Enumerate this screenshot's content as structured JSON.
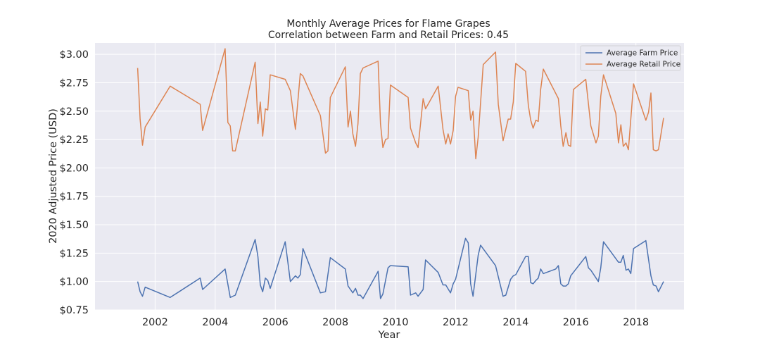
{
  "chart_data": {
    "type": "line",
    "title": "Monthly Average Prices for Flame Grapes",
    "subtitle": "Correlation between Farm and Retail Prices: 0.45",
    "xlabel": "Year",
    "ylabel": "2020 Adjusted Price (USD)",
    "xlim": [
      2000.0,
      2019.6
    ],
    "ylim": [
      0.75,
      3.1
    ],
    "x_ticks": [
      2002,
      2004,
      2006,
      2008,
      2010,
      2012,
      2014,
      2016,
      2018
    ],
    "x_tick_labels": [
      "2002",
      "2004",
      "2006",
      "2008",
      "2010",
      "2012",
      "2014",
      "2016",
      "2018"
    ],
    "y_ticks": [
      0.75,
      1.0,
      1.25,
      1.5,
      1.75,
      2.0,
      2.25,
      2.5,
      2.75,
      3.0
    ],
    "y_tick_labels": [
      "$0.75",
      "$1.00",
      "$1.25",
      "$1.50",
      "$1.75",
      "$2.00",
      "$2.25",
      "$2.50",
      "$2.75",
      "$3.00"
    ],
    "grid": true,
    "legend_position": "top-right",
    "series": [
      {
        "name": "Average Farm Price",
        "color": "#4c72b0",
        "points": [
          [
            2001.42,
            1.0
          ],
          [
            2001.5,
            0.91
          ],
          [
            2001.58,
            0.87
          ],
          [
            2001.67,
            0.95
          ],
          [
            2002.5,
            0.86
          ],
          [
            2003.5,
            1.03
          ],
          [
            2003.58,
            0.93
          ],
          [
            2004.33,
            1.11
          ],
          [
            2004.5,
            0.86
          ],
          [
            2004.67,
            0.88
          ],
          [
            2005.33,
            1.37
          ],
          [
            2005.42,
            1.22
          ],
          [
            2005.5,
            0.97
          ],
          [
            2005.58,
            0.91
          ],
          [
            2005.67,
            1.03
          ],
          [
            2005.75,
            1.01
          ],
          [
            2005.83,
            0.94
          ],
          [
            2006.33,
            1.35
          ],
          [
            2006.5,
            1.0
          ],
          [
            2006.67,
            1.05
          ],
          [
            2006.75,
            1.03
          ],
          [
            2006.83,
            1.06
          ],
          [
            2006.92,
            1.29
          ],
          [
            2007.5,
            0.9
          ],
          [
            2007.67,
            0.91
          ],
          [
            2007.83,
            1.21
          ],
          [
            2008.33,
            1.11
          ],
          [
            2008.42,
            0.96
          ],
          [
            2008.58,
            0.9
          ],
          [
            2008.67,
            0.94
          ],
          [
            2008.75,
            0.88
          ],
          [
            2008.83,
            0.88
          ],
          [
            2008.92,
            0.85
          ],
          [
            2009.42,
            1.09
          ],
          [
            2009.5,
            0.85
          ],
          [
            2009.58,
            0.89
          ],
          [
            2009.75,
            1.12
          ],
          [
            2009.83,
            1.14
          ],
          [
            2010.42,
            1.13
          ],
          [
            2010.5,
            0.88
          ],
          [
            2010.67,
            0.9
          ],
          [
            2010.75,
            0.87
          ],
          [
            2010.92,
            0.93
          ],
          [
            2011.0,
            1.19
          ],
          [
            2011.42,
            1.08
          ],
          [
            2011.58,
            0.97
          ],
          [
            2011.67,
            0.97
          ],
          [
            2011.83,
            0.9
          ],
          [
            2011.92,
            0.98
          ],
          [
            2012.0,
            1.02
          ],
          [
            2012.33,
            1.38
          ],
          [
            2012.42,
            1.34
          ],
          [
            2012.5,
            0.98
          ],
          [
            2012.58,
            0.87
          ],
          [
            2012.75,
            1.23
          ],
          [
            2012.83,
            1.32
          ],
          [
            2013.33,
            1.14
          ],
          [
            2013.58,
            0.87
          ],
          [
            2013.67,
            0.88
          ],
          [
            2013.83,
            1.02
          ],
          [
            2013.92,
            1.05
          ],
          [
            2014.0,
            1.06
          ],
          [
            2014.33,
            1.22
          ],
          [
            2014.42,
            1.22
          ],
          [
            2014.5,
            0.99
          ],
          [
            2014.58,
            0.98
          ],
          [
            2014.67,
            1.01
          ],
          [
            2014.75,
            1.03
          ],
          [
            2014.83,
            1.11
          ],
          [
            2014.92,
            1.07
          ],
          [
            2015.33,
            1.11
          ],
          [
            2015.42,
            1.14
          ],
          [
            2015.5,
            0.98
          ],
          [
            2015.58,
            0.96
          ],
          [
            2015.67,
            0.96
          ],
          [
            2015.75,
            0.98
          ],
          [
            2015.83,
            1.05
          ],
          [
            2016.33,
            1.22
          ],
          [
            2016.42,
            1.12
          ],
          [
            2016.5,
            1.1
          ],
          [
            2016.75,
            1.0
          ],
          [
            2016.83,
            1.12
          ],
          [
            2016.92,
            1.35
          ],
          [
            2017.42,
            1.17
          ],
          [
            2017.5,
            1.17
          ],
          [
            2017.58,
            1.23
          ],
          [
            2017.67,
            1.1
          ],
          [
            2017.75,
            1.11
          ],
          [
            2017.83,
            1.07
          ],
          [
            2017.92,
            1.29
          ],
          [
            2018.33,
            1.36
          ],
          [
            2018.5,
            1.05
          ],
          [
            2018.58,
            0.97
          ],
          [
            2018.67,
            0.96
          ],
          [
            2018.75,
            0.91
          ],
          [
            2018.92,
            1.0
          ]
        ]
      },
      {
        "name": "Average Retail Price",
        "color": "#dd8452",
        "points": [
          [
            2001.42,
            2.88
          ],
          [
            2001.5,
            2.43
          ],
          [
            2001.58,
            2.2
          ],
          [
            2001.67,
            2.36
          ],
          [
            2002.5,
            2.72
          ],
          [
            2003.5,
            2.56
          ],
          [
            2003.58,
            2.33
          ],
          [
            2004.33,
            3.05
          ],
          [
            2004.42,
            2.4
          ],
          [
            2004.5,
            2.37
          ],
          [
            2004.58,
            2.15
          ],
          [
            2004.67,
            2.15
          ],
          [
            2005.33,
            2.93
          ],
          [
            2005.42,
            2.39
          ],
          [
            2005.5,
            2.58
          ],
          [
            2005.58,
            2.28
          ],
          [
            2005.67,
            2.52
          ],
          [
            2005.75,
            2.51
          ],
          [
            2005.83,
            2.82
          ],
          [
            2006.33,
            2.78
          ],
          [
            2006.5,
            2.68
          ],
          [
            2006.67,
            2.34
          ],
          [
            2006.83,
            2.83
          ],
          [
            2006.92,
            2.81
          ],
          [
            2007.5,
            2.46
          ],
          [
            2007.67,
            2.13
          ],
          [
            2007.75,
            2.15
          ],
          [
            2007.83,
            2.62
          ],
          [
            2008.33,
            2.89
          ],
          [
            2008.42,
            2.36
          ],
          [
            2008.5,
            2.5
          ],
          [
            2008.58,
            2.3
          ],
          [
            2008.67,
            2.19
          ],
          [
            2008.75,
            2.39
          ],
          [
            2008.83,
            2.83
          ],
          [
            2008.92,
            2.88
          ],
          [
            2009.42,
            2.94
          ],
          [
            2009.5,
            2.39
          ],
          [
            2009.58,
            2.18
          ],
          [
            2009.67,
            2.25
          ],
          [
            2009.75,
            2.26
          ],
          [
            2009.83,
            2.73
          ],
          [
            2010.42,
            2.62
          ],
          [
            2010.5,
            2.35
          ],
          [
            2010.67,
            2.22
          ],
          [
            2010.75,
            2.18
          ],
          [
            2010.92,
            2.61
          ],
          [
            2011.0,
            2.52
          ],
          [
            2011.42,
            2.72
          ],
          [
            2011.58,
            2.34
          ],
          [
            2011.67,
            2.21
          ],
          [
            2011.75,
            2.3
          ],
          [
            2011.83,
            2.21
          ],
          [
            2011.92,
            2.33
          ],
          [
            2012.0,
            2.63
          ],
          [
            2012.08,
            2.71
          ],
          [
            2012.42,
            2.68
          ],
          [
            2012.5,
            2.42
          ],
          [
            2012.58,
            2.5
          ],
          [
            2012.67,
            2.08
          ],
          [
            2012.75,
            2.27
          ],
          [
            2012.92,
            2.91
          ],
          [
            2013.33,
            3.02
          ],
          [
            2013.42,
            2.56
          ],
          [
            2013.58,
            2.24
          ],
          [
            2013.75,
            2.43
          ],
          [
            2013.83,
            2.43
          ],
          [
            2013.92,
            2.58
          ],
          [
            2014.0,
            2.92
          ],
          [
            2014.33,
            2.85
          ],
          [
            2014.42,
            2.55
          ],
          [
            2014.5,
            2.42
          ],
          [
            2014.58,
            2.35
          ],
          [
            2014.67,
            2.42
          ],
          [
            2014.75,
            2.41
          ],
          [
            2014.83,
            2.69
          ],
          [
            2014.92,
            2.87
          ],
          [
            2015.42,
            2.61
          ],
          [
            2015.5,
            2.37
          ],
          [
            2015.58,
            2.19
          ],
          [
            2015.67,
            2.31
          ],
          [
            2015.75,
            2.2
          ],
          [
            2015.83,
            2.19
          ],
          [
            2015.92,
            2.69
          ],
          [
            2016.33,
            2.78
          ],
          [
            2016.5,
            2.37
          ],
          [
            2016.67,
            2.22
          ],
          [
            2016.75,
            2.28
          ],
          [
            2016.83,
            2.63
          ],
          [
            2016.92,
            2.82
          ],
          [
            2017.33,
            2.48
          ],
          [
            2017.42,
            2.22
          ],
          [
            2017.5,
            2.38
          ],
          [
            2017.58,
            2.19
          ],
          [
            2017.67,
            2.22
          ],
          [
            2017.75,
            2.16
          ],
          [
            2017.92,
            2.74
          ],
          [
            2018.33,
            2.42
          ],
          [
            2018.42,
            2.49
          ],
          [
            2018.5,
            2.66
          ],
          [
            2018.58,
            2.16
          ],
          [
            2018.67,
            2.15
          ],
          [
            2018.75,
            2.16
          ],
          [
            2018.92,
            2.44
          ]
        ]
      }
    ]
  }
}
